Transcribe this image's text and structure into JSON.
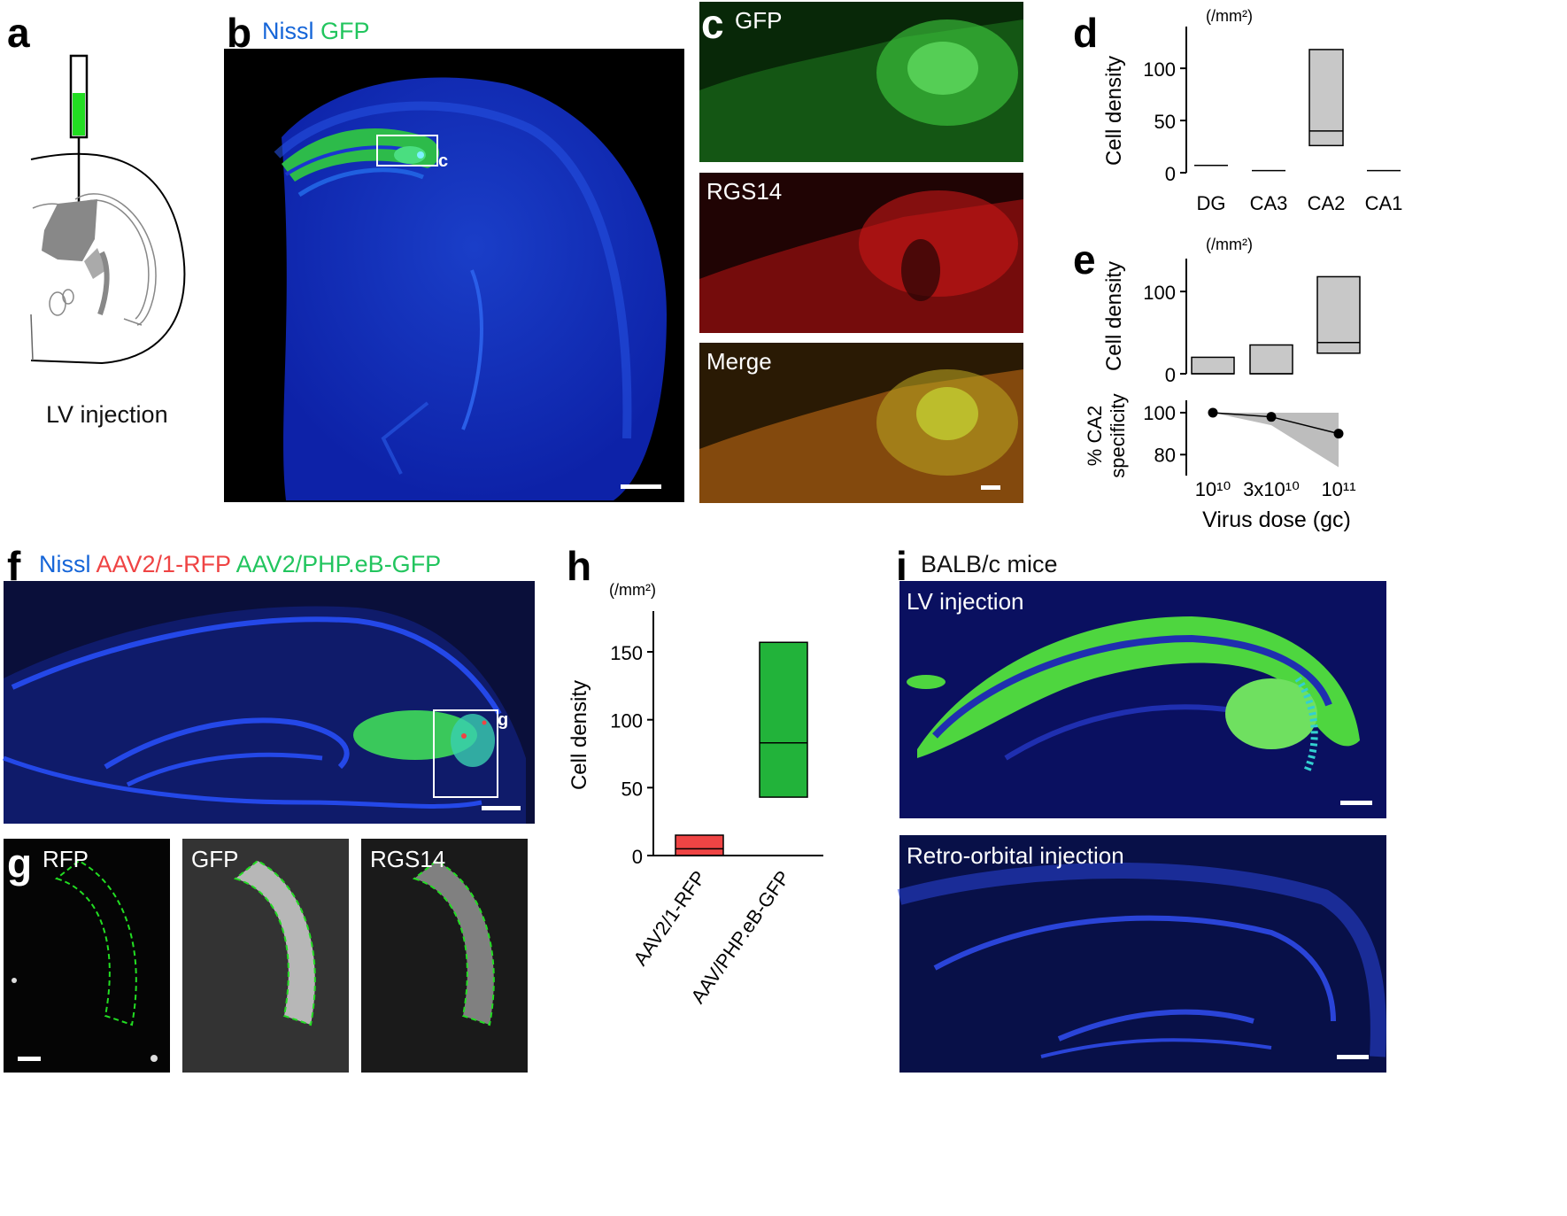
{
  "panels": {
    "a": {
      "label": "a",
      "caption": "LV injection"
    },
    "b": {
      "label": "b",
      "stain1": "Nissl",
      "stain2": "GFP",
      "box_label": "c",
      "colors": {
        "nissl": "#1565d8",
        "gfp": "#22c55e"
      }
    },
    "c": {
      "label": "c",
      "tiles": [
        "GFP",
        "RGS14",
        "Merge"
      ]
    },
    "d": {
      "label": "d"
    },
    "e": {
      "label": "e"
    },
    "f": {
      "label": "f",
      "stain1": "Nissl",
      "stain2": "AAV2/1-RFP",
      "stain3": "AAV2/PHP.eB-GFP",
      "box_label": "g",
      "colors": {
        "nissl": "#1565d8",
        "rfp": "#ef4444",
        "gfp": "#22c55e"
      }
    },
    "g": {
      "label": "g",
      "tiles": [
        "RFP",
        "GFP",
        "RGS14"
      ]
    },
    "h": {
      "label": "h"
    },
    "i": {
      "label": "i",
      "title": "BALB/c mice",
      "top": "LV injection",
      "bottom": "Retro-orbital injection"
    }
  },
  "chart_data": [
    {
      "panel": "d",
      "type": "box",
      "unit": "(/mm²)",
      "ylabel": "Cell density",
      "categories": [
        "DG",
        "CA3",
        "CA2",
        "CA1"
      ],
      "boxes": [
        {
          "low": 7,
          "median": 7,
          "high": 7
        },
        {
          "low": 2,
          "median": 2,
          "high": 2
        },
        {
          "low": 26,
          "median": 40,
          "high": 118
        },
        {
          "low": 2,
          "median": 2,
          "high": 2
        }
      ],
      "ylim": [
        0,
        140
      ],
      "yticks": [
        0,
        50,
        100
      ],
      "fill": "#c8c8c8"
    },
    {
      "panel": "e-top",
      "type": "box",
      "unit": "(/mm²)",
      "ylabel": "Cell density",
      "categories": [
        "10^10",
        "3x10^10",
        "10^11"
      ],
      "boxes": [
        {
          "low": 0,
          "median": 0,
          "high": 20
        },
        {
          "low": 0,
          "median": 0,
          "high": 35
        },
        {
          "low": 25,
          "median": 38,
          "high": 118
        }
      ],
      "ylim": [
        0,
        140
      ],
      "yticks": [
        0,
        100
      ],
      "fill": "#c8c8c8"
    },
    {
      "panel": "e-bottom",
      "type": "line",
      "ylabel": "% CA2 specificity",
      "xlabel": "Virus dose (gc)",
      "x_ticklabels": [
        "10¹⁰",
        "3x10¹⁰",
        "10¹¹"
      ],
      "x": [
        "10^10",
        "3x10^10",
        "10^11"
      ],
      "y": [
        100,
        98,
        90
      ],
      "band_low": [
        100,
        94,
        74
      ],
      "band_high": [
        100,
        100,
        100
      ],
      "ylim": [
        70,
        108
      ],
      "yticks": [
        80,
        100
      ]
    },
    {
      "panel": "h",
      "type": "box",
      "unit": "(/mm²)",
      "ylabel": "Cell density",
      "categories": [
        "AAV2/1-RFP",
        "AAV/PHP.eB-GFP"
      ],
      "boxes": [
        {
          "low": 0,
          "median": 5,
          "high": 15,
          "fill": "#ef4444"
        },
        {
          "low": 43,
          "median": 83,
          "high": 157,
          "fill": "#22b33a"
        }
      ],
      "ylim": [
        0,
        180
      ],
      "yticks": [
        0,
        50,
        100,
        150
      ]
    }
  ]
}
